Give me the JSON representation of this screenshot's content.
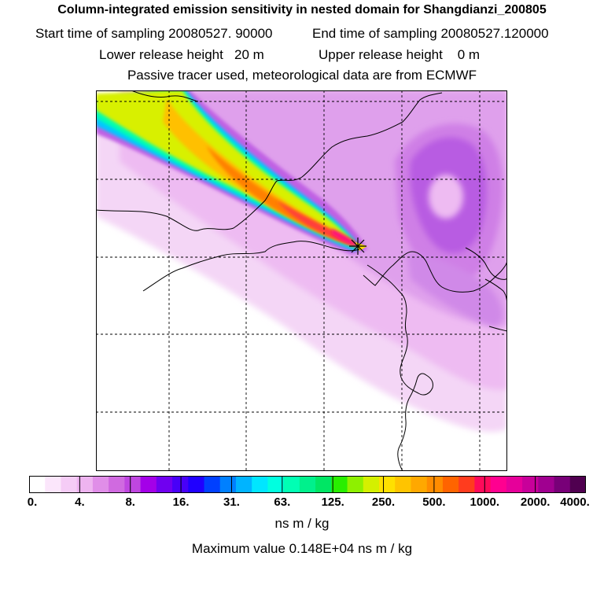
{
  "header": {
    "title": "Column-integrated emission sensitivity in nested domain for Shangdianzi_200805",
    "start_time": "Start time of sampling 20080527. 90000",
    "end_time": "End time of sampling 20080527.120000",
    "lower_height": "Lower release height   20 m",
    "upper_height": "Upper release height    0 m",
    "tracer_info": "Passive tracer used, meteorological data are from ECMWF"
  },
  "map": {
    "station_marker": "asterisk-icon"
  },
  "colorbar": {
    "colors": [
      "#ffffff",
      "#fbe6fb",
      "#f5ccf6",
      "#eeb4f0",
      "#e08ee8",
      "#d06ae0",
      "#bf46e0",
      "#a400e8",
      "#7000f0",
      "#4800f8",
      "#2000ff",
      "#0040ff",
      "#0080ff",
      "#00b4ff",
      "#00e6ff",
      "#00ffe0",
      "#00ffb4",
      "#00f08c",
      "#00e664",
      "#28ee00",
      "#8ef000",
      "#d4f000",
      "#ffe000",
      "#ffc400",
      "#ffa800",
      "#ff8c00",
      "#ff6400",
      "#ff3c1e",
      "#ff0a5a",
      "#ff0090",
      "#e6009a",
      "#c8009a",
      "#a00090",
      "#780078",
      "#500050"
    ],
    "tick_labels": [
      "0.",
      "4.",
      "8.",
      "16.",
      "31.",
      "63.",
      "125.",
      "250.",
      "500.",
      "1000.",
      "2000.",
      "4000."
    ],
    "units": "ns m / kg",
    "max_value_text": "Maximum value  0.148E+04 ns m / kg"
  }
}
